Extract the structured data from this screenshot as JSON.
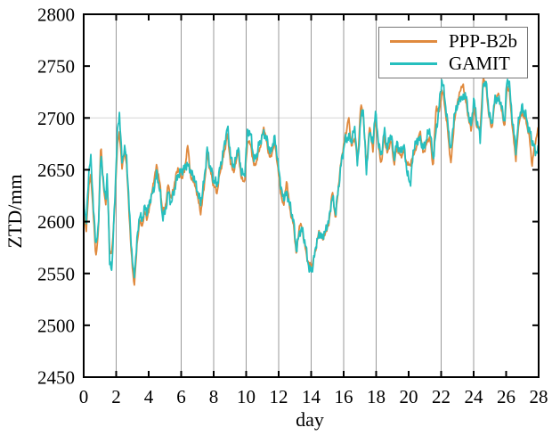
{
  "figure": {
    "background": "#ffffff",
    "y_axis": {
      "label": "ZTD/mm",
      "range": [
        2450,
        2800
      ],
      "ticks": [
        2450,
        2500,
        2550,
        2600,
        2650,
        2700,
        2750,
        2800
      ]
    },
    "x_axis": {
      "label": "day",
      "range": [
        0,
        28
      ],
      "ticks": [
        0,
        2,
        4,
        6,
        8,
        10,
        12,
        14,
        16,
        18,
        20,
        22,
        24,
        26,
        28
      ]
    },
    "grid": {
      "vertical_days": [
        2,
        6,
        8,
        10,
        12,
        14,
        16,
        18,
        22,
        24
      ],
      "horizontal_values": [
        2700
      ],
      "vertical_color": "#9a9a9a",
      "horizontal_color": "#d6d6d6"
    },
    "legend": {
      "items": [
        {
          "label": "PPP-B2b",
          "color": "#E08A3E"
        },
        {
          "label": "GAMIT",
          "color": "#26BFBE"
        }
      ]
    }
  },
  "chart_data": {
    "type": "line",
    "title": "",
    "xlabel": "day",
    "ylabel": "ZTD/mm",
    "xlim": [
      0,
      28
    ],
    "ylim": [
      2450,
      2800
    ],
    "legend_position": "top-right",
    "grid": "vertical-major",
    "x_keyframes": [
      0,
      0.15,
      0.3,
      0.45,
      0.6,
      0.75,
      0.9,
      1.05,
      1.2,
      1.35,
      1.45,
      1.6,
      1.75,
      1.9,
      2.1,
      2.2,
      2.35,
      2.5,
      2.65,
      2.8,
      3.0,
      3.1,
      3.3,
      3.45,
      3.6,
      3.75,
      3.9,
      4.1,
      4.3,
      4.5,
      4.7,
      4.85,
      5.0,
      5.2,
      5.4,
      5.6,
      5.8,
      6.0,
      6.2,
      6.4,
      6.6,
      6.8,
      7.0,
      7.2,
      7.4,
      7.6,
      7.8,
      8.0,
      8.2,
      8.4,
      8.6,
      8.85,
      9.05,
      9.25,
      9.5,
      9.7,
      9.9,
      10.1,
      10.3,
      10.5,
      10.7,
      10.9,
      11.1,
      11.3,
      11.5,
      11.75,
      11.95,
      12.15,
      12.3,
      12.5,
      12.7,
      12.9,
      13.1,
      13.3,
      13.5,
      13.7,
      13.9,
      14.1,
      14.3,
      14.5,
      14.7,
      14.9,
      15.1,
      15.3,
      15.5,
      15.7,
      15.9,
      16.1,
      16.3,
      16.5,
      16.7,
      16.85,
      17.05,
      17.2,
      17.4,
      17.6,
      17.8,
      17.95,
      18.1,
      18.3,
      18.5,
      18.7,
      18.9,
      19.1,
      19.3,
      19.5,
      19.7,
      19.9,
      20.1,
      20.3,
      20.5,
      20.7,
      20.9,
      21.1,
      21.3,
      21.5,
      21.7,
      21.9,
      22.05,
      22.2,
      22.4,
      22.6,
      22.8,
      23.0,
      23.2,
      23.35,
      23.5,
      23.7,
      23.85,
      24.0,
      24.2,
      24.4,
      24.6,
      24.75,
      24.9,
      25.1,
      25.3,
      25.5,
      25.7,
      25.9,
      26.05,
      26.2,
      26.4,
      26.6,
      26.8,
      27.0,
      27.2,
      27.4,
      27.6,
      27.8,
      28.0
    ],
    "series": [
      {
        "name": "PPP-B2b",
        "color": "#E08A3E",
        "noise_seed": 3,
        "values": [
          2612,
          2588,
          2632,
          2645,
          2605,
          2566,
          2588,
          2676,
          2638,
          2615,
          2642,
          2570,
          2572,
          2612,
          2680,
          2686,
          2652,
          2668,
          2655,
          2605,
          2555,
          2537,
          2580,
          2602,
          2595,
          2610,
          2602,
          2618,
          2638,
          2655,
          2635,
          2610,
          2612,
          2635,
          2622,
          2638,
          2652,
          2642,
          2648,
          2674,
          2642,
          2638,
          2625,
          2608,
          2632,
          2665,
          2648,
          2635,
          2628,
          2648,
          2662,
          2685,
          2655,
          2648,
          2668,
          2642,
          2638,
          2680,
          2672,
          2652,
          2662,
          2675,
          2692,
          2672,
          2660,
          2678,
          2652,
          2625,
          2615,
          2640,
          2610,
          2598,
          2568,
          2600,
          2588,
          2568,
          2557,
          2560,
          2575,
          2592,
          2582,
          2590,
          2598,
          2630,
          2602,
          2638,
          2665,
          2682,
          2700,
          2672,
          2682,
          2655,
          2712,
          2705,
          2652,
          2692,
          2668,
          2702,
          2678,
          2655,
          2682,
          2665,
          2680,
          2656,
          2672,
          2662,
          2668,
          2655,
          2655,
          2665,
          2672,
          2688,
          2665,
          2675,
          2682,
          2652,
          2712,
          2705,
          2728,
          2715,
          2688,
          2655,
          2695,
          2715,
          2728,
          2732,
          2718,
          2698,
          2688,
          2712,
          2692,
          2688,
          2740,
          2732,
          2708,
          2688,
          2715,
          2724,
          2710,
          2690,
          2730,
          2726,
          2688,
          2660,
          2698,
          2705,
          2698,
          2685,
          2655,
          2678,
          2690
        ]
      },
      {
        "name": "GAMIT",
        "color": "#26BFBE",
        "noise_seed": 7,
        "values": [
          2625,
          2595,
          2645,
          2662,
          2612,
          2578,
          2592,
          2665,
          2642,
          2620,
          2648,
          2560,
          2556,
          2618,
          2692,
          2705,
          2658,
          2670,
          2662,
          2612,
          2562,
          2545,
          2585,
          2608,
          2600,
          2615,
          2608,
          2622,
          2630,
          2648,
          2628,
          2605,
          2608,
          2628,
          2618,
          2632,
          2645,
          2648,
          2652,
          2655,
          2648,
          2642,
          2630,
          2618,
          2638,
          2670,
          2652,
          2640,
          2635,
          2652,
          2668,
          2692,
          2662,
          2652,
          2672,
          2648,
          2644,
          2690,
          2682,
          2658,
          2668,
          2680,
          2685,
          2678,
          2665,
          2682,
          2658,
          2632,
          2622,
          2628,
          2615,
          2602,
          2572,
          2592,
          2590,
          2572,
          2552,
          2556,
          2578,
          2588,
          2585,
          2592,
          2602,
          2625,
          2608,
          2635,
          2662,
          2678,
          2682,
          2678,
          2692,
          2652,
          2700,
          2708,
          2648,
          2688,
          2675,
          2708,
          2682,
          2662,
          2688,
          2670,
          2686,
          2662,
          2676,
          2666,
          2674,
          2648,
          2635,
          2670,
          2678,
          2680,
          2670,
          2680,
          2690,
          2660,
          2688,
          2715,
          2738,
          2722,
          2695,
          2668,
          2702,
          2712,
          2720,
          2718,
          2724,
          2702,
          2692,
          2718,
          2698,
          2680,
          2732,
          2736,
          2712,
          2692,
          2718,
          2718,
          2714,
          2694,
          2738,
          2732,
          2695,
          2670,
          2702,
          2710,
          2702,
          2690,
          2678,
          2668,
          2668
        ]
      }
    ],
    "noise": {
      "shared_amp_mm": 4,
      "series_amp_mm": 2.5,
      "sample_step_days": 0.04
    }
  }
}
